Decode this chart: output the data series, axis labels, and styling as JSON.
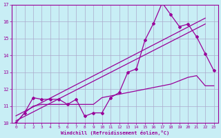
{
  "xlabel": "Windchill (Refroidissement éolien,°C)",
  "x_values": [
    0,
    1,
    2,
    3,
    4,
    5,
    6,
    7,
    8,
    9,
    10,
    11,
    12,
    13,
    14,
    15,
    16,
    17,
    18,
    19,
    20,
    21,
    22,
    23
  ],
  "line_spiky": [
    10.0,
    10.6,
    11.5,
    11.4,
    11.4,
    11.4,
    11.1,
    11.4,
    10.4,
    10.6,
    10.6,
    11.5,
    11.8,
    13.0,
    13.2,
    14.9,
    15.9,
    17.1,
    16.4,
    15.7,
    15.85,
    15.1,
    14.1,
    13.1
  ],
  "line_flat": [
    10.0,
    10.6,
    11.0,
    11.1,
    11.1,
    11.1,
    11.1,
    11.1,
    11.1,
    11.1,
    11.5,
    11.6,
    11.7,
    11.8,
    11.9,
    12.0,
    12.1,
    12.2,
    12.3,
    12.5,
    12.7,
    12.8,
    12.2,
    12.2
  ],
  "trend1_x": [
    0,
    10,
    20
  ],
  "trend1_y": [
    10.0,
    13.0,
    15.2
  ],
  "trend2_x": [
    0,
    10,
    20
  ],
  "trend2_y": [
    10.3,
    13.3,
    15.55
  ],
  "line_color": "#990099",
  "bg_color": "#c8eef5",
  "grid_color": "#aaaacc",
  "xlim": [
    -0.5,
    23.5
  ],
  "ylim": [
    10,
    17
  ],
  "yticks": [
    10,
    11,
    12,
    13,
    14,
    15,
    16,
    17
  ],
  "xticks": [
    0,
    1,
    2,
    3,
    4,
    5,
    6,
    7,
    8,
    9,
    10,
    11,
    12,
    13,
    14,
    15,
    16,
    17,
    18,
    19,
    20,
    21,
    22,
    23
  ]
}
